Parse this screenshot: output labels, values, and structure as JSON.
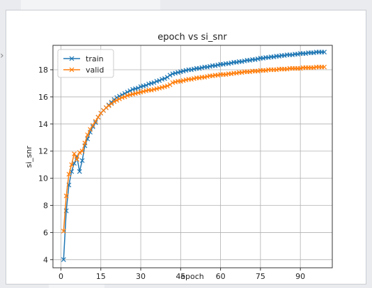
{
  "chart_data": {
    "type": "line",
    "title": "epoch vs si_snr",
    "xlabel": "epoch",
    "ylabel": "si_snr",
    "xlim": [
      -3,
      102
    ],
    "ylim": [
      3.4,
      19.8
    ],
    "xticks": [
      0,
      15,
      30,
      45,
      60,
      75,
      90
    ],
    "yticks": [
      4,
      6,
      8,
      10,
      12,
      14,
      16,
      18
    ],
    "grid": true,
    "legend_position": "upper-left",
    "series": [
      {
        "name": "train",
        "color": "#1f77b4",
        "marker": "x",
        "x": [
          1,
          2,
          3,
          4,
          5,
          6,
          7,
          8,
          9,
          10,
          11,
          12,
          13,
          14,
          15,
          16,
          17,
          18,
          19,
          20,
          21,
          22,
          23,
          24,
          25,
          26,
          27,
          28,
          29,
          30,
          31,
          32,
          33,
          34,
          35,
          36,
          37,
          38,
          39,
          40,
          41,
          42,
          43,
          44,
          45,
          46,
          47,
          48,
          49,
          50,
          51,
          52,
          53,
          54,
          55,
          56,
          57,
          58,
          59,
          60,
          61,
          62,
          63,
          64,
          65,
          66,
          67,
          68,
          69,
          70,
          71,
          72,
          73,
          74,
          75,
          76,
          77,
          78,
          79,
          80,
          81,
          82,
          83,
          84,
          85,
          86,
          87,
          88,
          89,
          90,
          91,
          92,
          93,
          94,
          95,
          96,
          97,
          98,
          99
        ],
        "y": [
          4.0,
          7.6,
          9.5,
          10.5,
          11.1,
          11.6,
          10.5,
          11.3,
          12.4,
          12.9,
          13.4,
          13.8,
          14.1,
          14.5,
          14.8,
          15.0,
          15.2,
          15.4,
          15.6,
          15.8,
          15.95,
          16.05,
          16.15,
          16.25,
          16.35,
          16.45,
          16.55,
          16.6,
          16.65,
          16.75,
          16.8,
          16.85,
          16.95,
          17.0,
          17.05,
          17.15,
          17.2,
          17.3,
          17.35,
          17.45,
          17.6,
          17.7,
          17.75,
          17.8,
          17.85,
          17.9,
          17.95,
          18.0,
          18.0,
          18.05,
          18.1,
          18.1,
          18.15,
          18.2,
          18.2,
          18.25,
          18.3,
          18.3,
          18.35,
          18.4,
          18.4,
          18.45,
          18.45,
          18.5,
          18.55,
          18.55,
          18.6,
          18.6,
          18.65,
          18.7,
          18.7,
          18.75,
          18.75,
          18.8,
          18.85,
          18.85,
          18.9,
          18.9,
          18.95,
          18.95,
          19.0,
          19.0,
          19.05,
          19.05,
          19.1,
          19.1,
          19.1,
          19.15,
          19.15,
          19.2,
          19.2,
          19.2,
          19.25,
          19.25,
          19.25,
          19.3,
          19.3,
          19.3,
          19.3
        ]
      },
      {
        "name": "valid",
        "color": "#ff7f0e",
        "marker": "x",
        "x": [
          1,
          2,
          3,
          4,
          5,
          6,
          7,
          8,
          9,
          10,
          11,
          12,
          13,
          14,
          15,
          16,
          17,
          18,
          19,
          20,
          21,
          22,
          23,
          24,
          25,
          26,
          27,
          28,
          29,
          30,
          31,
          32,
          33,
          34,
          35,
          36,
          37,
          38,
          39,
          40,
          41,
          42,
          43,
          44,
          45,
          46,
          47,
          48,
          49,
          50,
          51,
          52,
          53,
          54,
          55,
          56,
          57,
          58,
          59,
          60,
          61,
          62,
          63,
          64,
          65,
          66,
          67,
          68,
          69,
          70,
          71,
          72,
          73,
          74,
          75,
          76,
          77,
          78,
          79,
          80,
          81,
          82,
          83,
          84,
          85,
          86,
          87,
          88,
          89,
          90,
          91,
          92,
          93,
          94,
          95,
          96,
          97,
          98,
          99
        ],
        "y": [
          6.1,
          8.7,
          10.3,
          11.0,
          11.8,
          11.4,
          11.9,
          12.0,
          12.6,
          13.2,
          13.6,
          13.9,
          14.2,
          14.5,
          14.8,
          15.0,
          15.2,
          15.35,
          15.5,
          15.65,
          15.75,
          15.85,
          15.95,
          16.0,
          16.1,
          16.15,
          16.2,
          16.25,
          16.3,
          16.35,
          16.4,
          16.45,
          16.5,
          16.5,
          16.55,
          16.6,
          16.65,
          16.7,
          16.75,
          16.8,
          16.9,
          17.05,
          17.1,
          17.15,
          17.15,
          17.2,
          17.25,
          17.3,
          17.3,
          17.35,
          17.4,
          17.4,
          17.45,
          17.45,
          17.5,
          17.55,
          17.55,
          17.6,
          17.6,
          17.65,
          17.65,
          17.65,
          17.7,
          17.7,
          17.75,
          17.75,
          17.8,
          17.8,
          17.85,
          17.85,
          17.85,
          17.9,
          17.9,
          17.9,
          17.95,
          17.95,
          17.95,
          18.0,
          18.0,
          18.0,
          18.0,
          18.05,
          18.05,
          18.05,
          18.05,
          18.1,
          18.1,
          18.1,
          18.1,
          18.1,
          18.15,
          18.15,
          18.15,
          18.15,
          18.15,
          18.2,
          18.2,
          18.2,
          18.2
        ]
      }
    ]
  }
}
